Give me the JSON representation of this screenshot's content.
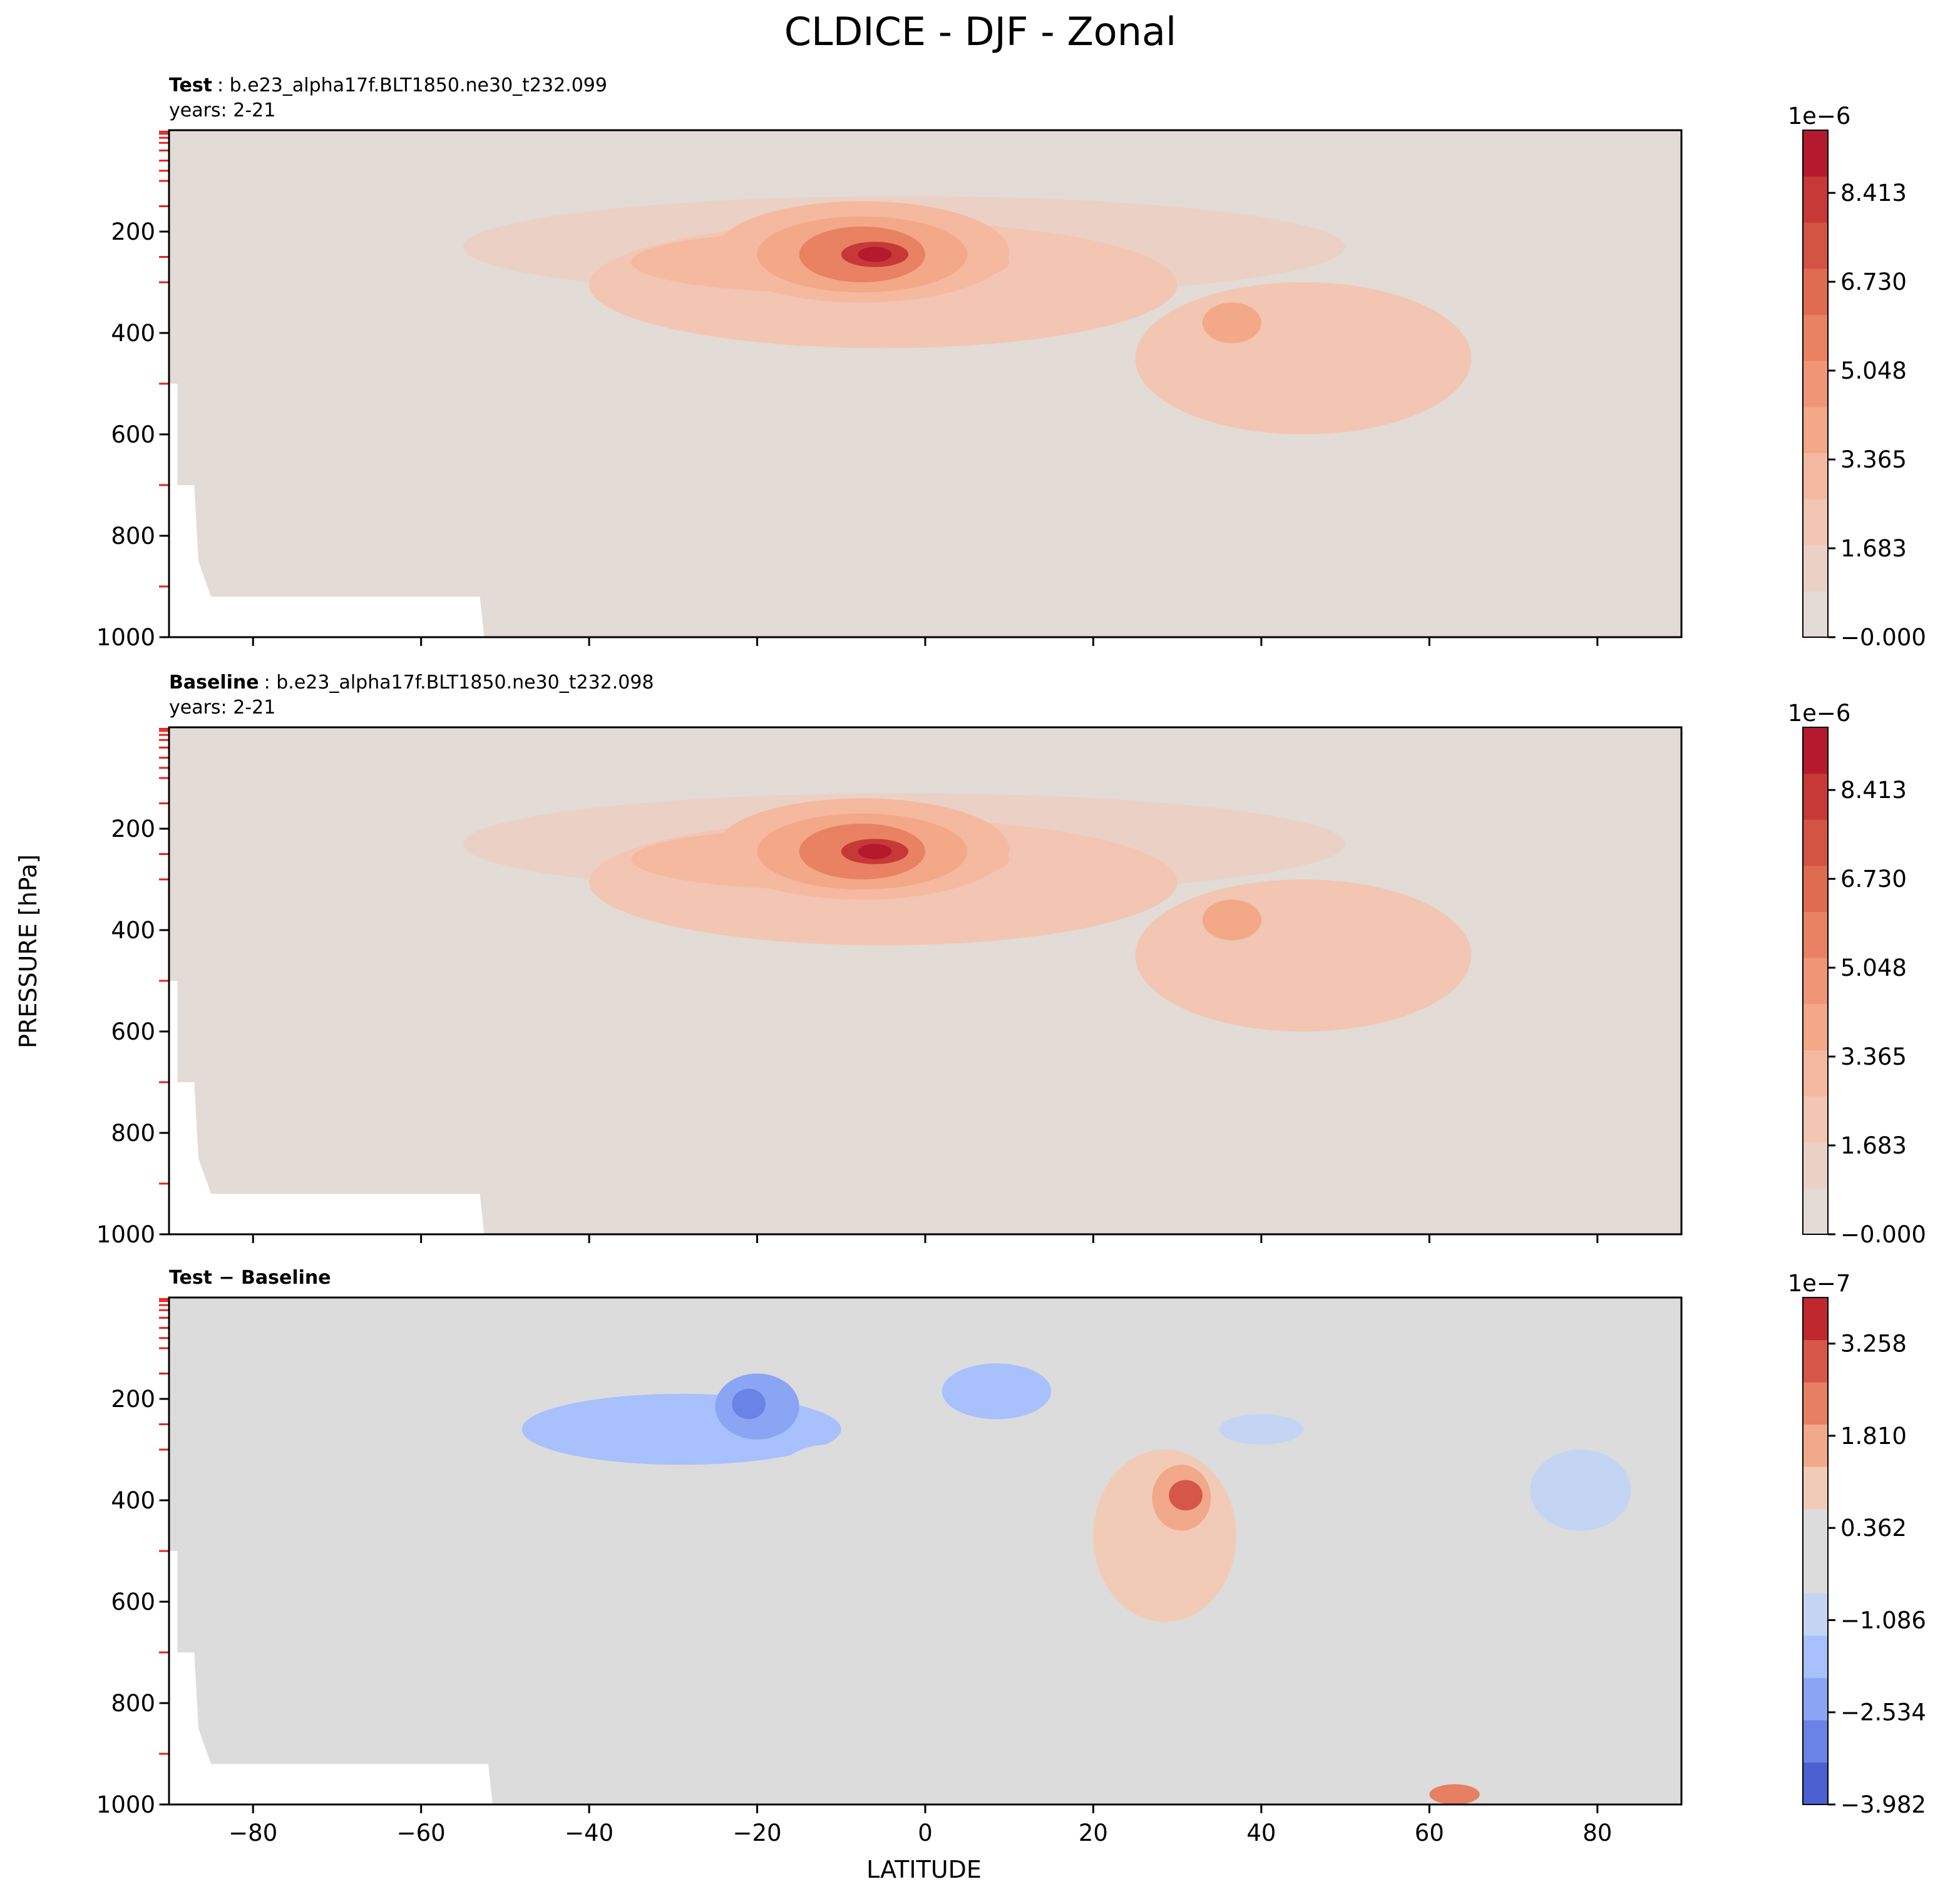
{
  "figure": {
    "title": "CLDICE - DJF - Zonal",
    "xlabel": "LATITUDE",
    "ylabel": "PRESSURE [hPa]"
  },
  "chart_data": [
    {
      "type": "heatmap",
      "panel": "test",
      "header_bold": "Test",
      "header_rest": ": b.e23_alpha17f.BLT1850.ne30_t232.099",
      "subheader": "years: 2-21",
      "xlim": [
        -90,
        90
      ],
      "ylim": [
        1000,
        0
      ],
      "x_ticks": [
        "−80",
        "−60",
        "−40",
        "−20",
        "0",
        "20",
        "40",
        "60",
        "80"
      ],
      "x_tick_values": [
        -80,
        -60,
        -40,
        -20,
        0,
        20,
        40,
        60,
        80
      ],
      "y_ticks": [
        "200",
        "400",
        "600",
        "800",
        "1000"
      ],
      "y_tick_values": [
        200,
        400,
        600,
        800,
        1000
      ],
      "colormap": "Reds",
      "colorbar": {
        "exponent_label": "1e−6",
        "ticks": [
          "−0.000",
          "1.683",
          "3.365",
          "5.048",
          "6.730",
          "8.413"
        ],
        "tick_values": [
          0,
          1.683,
          3.365,
          5.048,
          6.73,
          8.413
        ],
        "vmin": 0,
        "vmax": 9.6,
        "colors": [
          "#e2dbd6",
          "#ebd1c5",
          "#f2c6b2",
          "#f5b9a0",
          "#f3a888",
          "#f09676",
          "#e88263",
          "#df6b51",
          "#d45443",
          "#c73936",
          "#b4192d"
        ]
      },
      "regions": [
        {
          "lat": [
            -55,
            50
          ],
          "p": [
            130,
            330
          ],
          "value": 1.2
        },
        {
          "lat": [
            -40,
            30
          ],
          "p": [
            180,
            430
          ],
          "value": 2.0
        },
        {
          "lat": [
            -35,
            10
          ],
          "p": [
            200,
            320
          ],
          "value": 2.8
        },
        {
          "lat": [
            -25,
            10
          ],
          "p": [
            140,
            340
          ],
          "value": 3.2
        },
        {
          "lat": [
            -20,
            5
          ],
          "p": [
            170,
            320
          ],
          "value": 4.0
        },
        {
          "lat": [
            -15,
            0
          ],
          "p": [
            190,
            300
          ],
          "value": 6.0
        },
        {
          "lat": [
            -10,
            -2
          ],
          "p": [
            220,
            270
          ],
          "value": 8.0
        },
        {
          "lat": [
            -8,
            -4
          ],
          "p": [
            230,
            260
          ],
          "value": 9.0
        },
        {
          "lat": [
            25,
            65
          ],
          "p": [
            300,
            600
          ],
          "value": 2.4
        },
        {
          "lat": [
            33,
            40
          ],
          "p": [
            340,
            420
          ],
          "value": 3.6
        }
      ],
      "missing_value_region": "below surface near Antarctica (−90 to −53, 920–1000 hPa)"
    },
    {
      "type": "heatmap",
      "panel": "baseline",
      "header_bold": "Baseline",
      "header_rest": ": b.e23_alpha17f.BLT1850.ne30_t232.098",
      "subheader": "years: 2-21",
      "xlim": [
        -90,
        90
      ],
      "ylim": [
        1000,
        0
      ],
      "x_ticks": [
        "−80",
        "−60",
        "−40",
        "−20",
        "0",
        "20",
        "40",
        "60",
        "80"
      ],
      "x_tick_values": [
        -80,
        -60,
        -40,
        -20,
        0,
        20,
        40,
        60,
        80
      ],
      "y_ticks": [
        "200",
        "400",
        "600",
        "800",
        "1000"
      ],
      "y_tick_values": [
        200,
        400,
        600,
        800,
        1000
      ],
      "colormap": "Reds",
      "colorbar": {
        "exponent_label": "1e−6",
        "ticks": [
          "−0.000",
          "1.683",
          "3.365",
          "5.048",
          "6.730",
          "8.413"
        ],
        "tick_values": [
          0,
          1.683,
          3.365,
          5.048,
          6.73,
          8.413
        ],
        "vmin": 0,
        "vmax": 9.6,
        "colors": [
          "#e2dbd6",
          "#ebd1c5",
          "#f2c6b2",
          "#f5b9a0",
          "#f3a888",
          "#f09676",
          "#e88263",
          "#df6b51",
          "#d45443",
          "#c73936",
          "#b4192d"
        ]
      },
      "regions": [
        {
          "lat": [
            -55,
            50
          ],
          "p": [
            130,
            330
          ],
          "value": 1.2
        },
        {
          "lat": [
            -40,
            30
          ],
          "p": [
            180,
            430
          ],
          "value": 2.0
        },
        {
          "lat": [
            -35,
            10
          ],
          "p": [
            200,
            320
          ],
          "value": 2.8
        },
        {
          "lat": [
            -25,
            10
          ],
          "p": [
            140,
            340
          ],
          "value": 3.2
        },
        {
          "lat": [
            -20,
            5
          ],
          "p": [
            170,
            320
          ],
          "value": 4.0
        },
        {
          "lat": [
            -15,
            0
          ],
          "p": [
            190,
            300
          ],
          "value": 6.0
        },
        {
          "lat": [
            -10,
            -2
          ],
          "p": [
            220,
            270
          ],
          "value": 8.0
        },
        {
          "lat": [
            -8,
            -4
          ],
          "p": [
            230,
            260
          ],
          "value": 9.0
        },
        {
          "lat": [
            25,
            65
          ],
          "p": [
            300,
            600
          ],
          "value": 2.4
        },
        {
          "lat": [
            33,
            40
          ],
          "p": [
            340,
            420
          ],
          "value": 3.6
        }
      ],
      "missing_value_region": "below surface near Antarctica (−90 to −53, 920–1000 hPa)"
    },
    {
      "type": "heatmap",
      "panel": "difference",
      "header_bold": "Test − Baseline",
      "header_rest": "",
      "subheader": "",
      "xlim": [
        -90,
        90
      ],
      "ylim": [
        1000,
        0
      ],
      "x_ticks": [
        "−80",
        "−60",
        "−40",
        "−20",
        "0",
        "20",
        "40",
        "60",
        "80"
      ],
      "x_tick_values": [
        -80,
        -60,
        -40,
        -20,
        0,
        20,
        40,
        60,
        80
      ],
      "y_ticks": [
        "200",
        "400",
        "600",
        "800",
        "1000"
      ],
      "y_tick_values": [
        200,
        400,
        600,
        800,
        1000
      ],
      "colormap": "coolwarm",
      "colorbar": {
        "exponent_label": "1e−7",
        "ticks": [
          "−3.982",
          "−2.534",
          "−1.086",
          "0.362",
          "1.810",
          "3.258"
        ],
        "tick_values": [
          -3.982,
          -2.534,
          -1.086,
          0.362,
          1.81,
          3.258
        ],
        "vmin": -3.982,
        "vmax": 3.982,
        "colors": [
          "#4a5fd0",
          "#6a83e6",
          "#8ba5f5",
          "#a8c0fb",
          "#c4d4f3",
          "#dcdcdc",
          "#dcdcdc",
          "#f2cbb6",
          "#f2a88a",
          "#e77f63",
          "#d5574a",
          "#c0282f"
        ]
      },
      "regions": [
        {
          "lat": [
            -62,
            -30
          ],
          "p": [
            250,
            430
          ],
          "value": -0.6
        },
        {
          "lat": [
            -30,
            30
          ],
          "p": [
            100,
            280
          ],
          "value": -0.6
        },
        {
          "lat": [
            -48,
            -10
          ],
          "p": [
            190,
            330
          ],
          "value": -1.4
        },
        {
          "lat": [
            -25,
            -15
          ],
          "p": [
            150,
            280
          ],
          "value": -2.2
        },
        {
          "lat": [
            -23,
            -19
          ],
          "p": [
            180,
            240
          ],
          "value": -3.0
        },
        {
          "lat": [
            2,
            15
          ],
          "p": [
            130,
            240
          ],
          "value": -1.4
        },
        {
          "lat": [
            35,
            45
          ],
          "p": [
            230,
            290
          ],
          "value": -0.9
        },
        {
          "lat": [
            55,
            90
          ],
          "p": [
            250,
            600
          ],
          "value": -0.6
        },
        {
          "lat": [
            72,
            84
          ],
          "p": [
            300,
            460
          ],
          "value": -1.3
        },
        {
          "lat": [
            -18,
            -5
          ],
          "p": [
            290,
            440
          ],
          "value": 0.6
        },
        {
          "lat": [
            -6,
            2
          ],
          "p": [
            290,
            400
          ],
          "value": 0.6
        },
        {
          "lat": [
            20,
            37
          ],
          "p": [
            300,
            640
          ],
          "value": 0.8
        },
        {
          "lat": [
            27,
            34
          ],
          "p": [
            330,
            460
          ],
          "value": 1.8
        },
        {
          "lat": [
            29,
            33
          ],
          "p": [
            360,
            420
          ],
          "value": 2.8
        },
        {
          "lat": [
            42,
            52
          ],
          "p": [
            320,
            500
          ],
          "value": 0.6
        },
        {
          "lat": [
            58,
            65
          ],
          "p": [
            600,
            1000
          ],
          "value": 0.6
        },
        {
          "lat": [
            60,
            66
          ],
          "p": [
            960,
            1000
          ],
          "value": 2.2
        }
      ],
      "missing_value_region": "below surface near Antarctica (−90 to −52, 920–1000 hPa)"
    }
  ]
}
